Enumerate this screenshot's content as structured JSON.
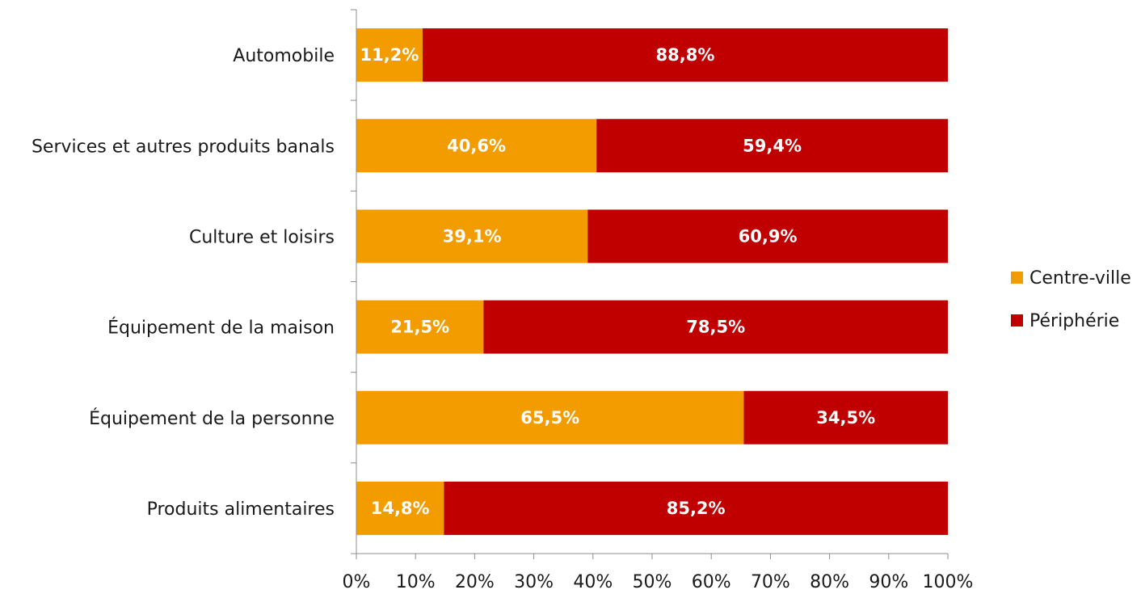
{
  "chart_data": {
    "type": "bar",
    "orientation": "horizontal",
    "stacked": "percent",
    "categories": [
      "Automobile",
      "Services et autres produits banals",
      "Culture et loisirs",
      "Équipement de la maison",
      "Équipement de la personne",
      "Produits alimentaires"
    ],
    "series": [
      {
        "name": "Centre-ville",
        "color": "#f29c00",
        "values": [
          11.2,
          40.6,
          39.1,
          21.5,
          65.5,
          14.8
        ],
        "labels": [
          "11,2%",
          "40,6%",
          "39,1%",
          "21,5%",
          "65,5%",
          "14,8%"
        ]
      },
      {
        "name": "Périphérie",
        "color": "#c00000",
        "values": [
          88.8,
          59.4,
          60.9,
          78.5,
          34.5,
          85.2
        ],
        "labels": [
          "88,8%",
          "59,4%",
          "60,9%",
          "78,5%",
          "34,5%",
          "85,2%"
        ]
      }
    ],
    "xlim": [
      0,
      100
    ],
    "xticks": [
      "0%",
      "10%",
      "20%",
      "30%",
      "40%",
      "50%",
      "60%",
      "70%",
      "80%",
      "90%",
      "100%"
    ],
    "grid": false,
    "legend_position": "right"
  }
}
